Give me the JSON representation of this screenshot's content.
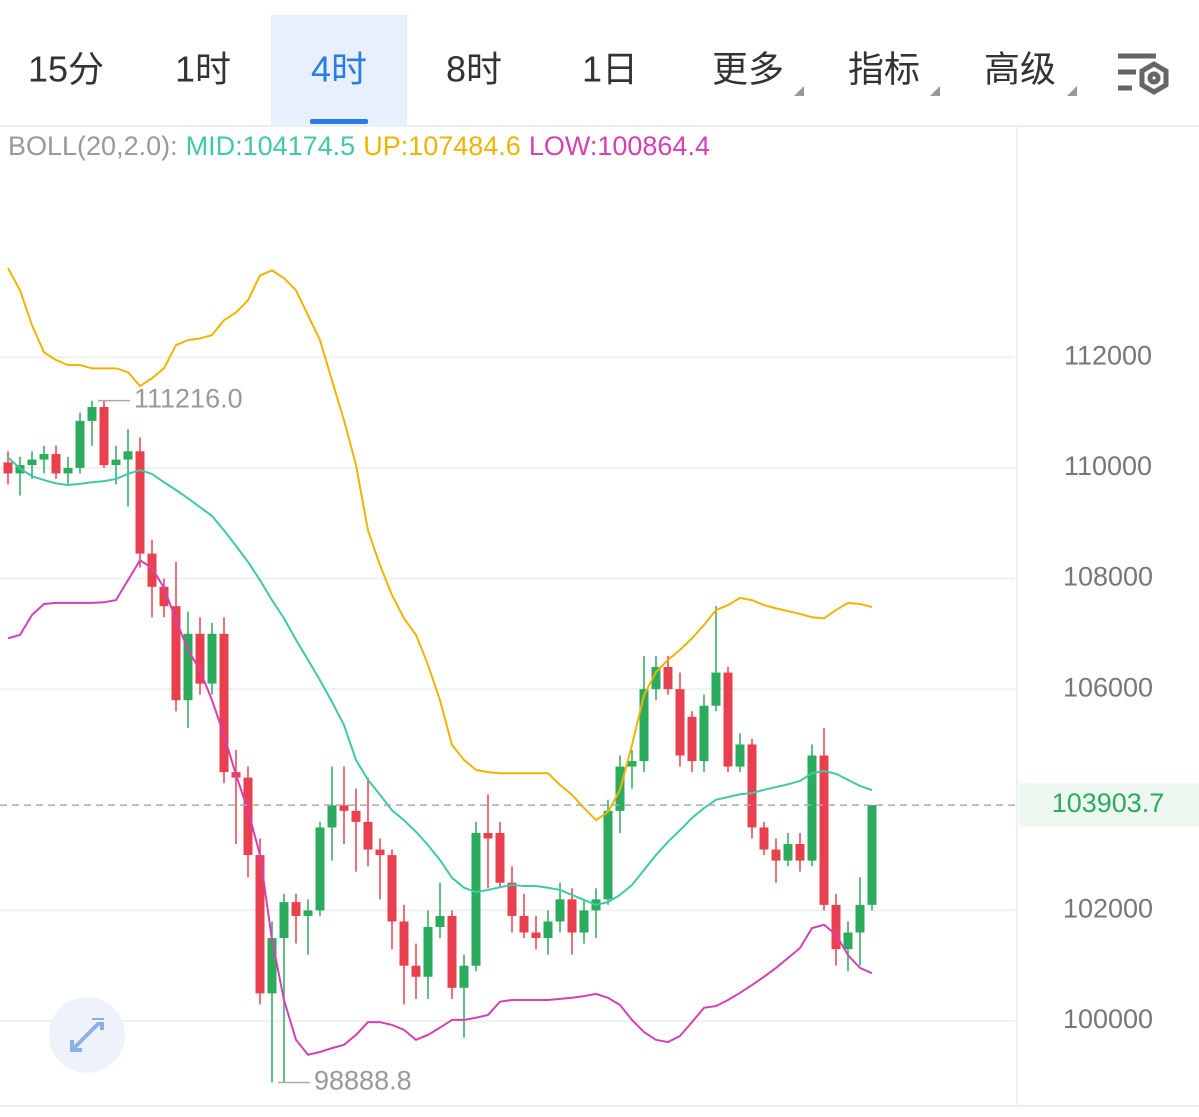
{
  "tabs": [
    "15分",
    "1时",
    "4时",
    "8时",
    "1日",
    "更多",
    "指标",
    "高级"
  ],
  "selected_tab": "4时",
  "chart_data": {
    "type": "candlestick",
    "indicator": "BOLL(20,2.0):",
    "open": [
      110100,
      109900,
      110050,
      110150,
      110250,
      109900,
      110000,
      110850,
      111100,
      110050,
      110150,
      110300,
      108450,
      107850,
      107500,
      105800,
      107000,
      106100,
      107000,
      104500,
      104400,
      103000,
      100500,
      101500,
      102150,
      101900,
      102000,
      103500,
      103900,
      103800,
      103600,
      103100,
      103000,
      101800,
      101000,
      100800,
      101700,
      101900,
      100600,
      101000,
      103400,
      103400,
      102500,
      101900,
      101600,
      101500,
      101800,
      102200,
      101600,
      102000,
      102200,
      103800,
      104600,
      104700,
      106000,
      106400,
      106000,
      105500,
      104700,
      105700,
      106300,
      104600,
      105000,
      103500,
      103100,
      102900,
      103200,
      102900,
      104800,
      102100,
      101300,
      101600,
      102100
    ],
    "high": [
      110300,
      110200,
      110300,
      110400,
      110400,
      110200,
      111000,
      111216,
      111200,
      110400,
      110700,
      110550,
      108700,
      108000,
      108300,
      107400,
      107300,
      107200,
      107300,
      104900,
      104600,
      103300,
      101800,
      102300,
      102300,
      102200,
      103600,
      104600,
      104600,
      104200,
      104400,
      103300,
      103100,
      102100,
      101400,
      102000,
      102500,
      102000,
      101200,
      103600,
      104100,
      103600,
      102800,
      102300,
      101900,
      102000,
      102500,
      102400,
      102200,
      102400,
      104000,
      104800,
      104900,
      106600,
      106600,
      106600,
      106300,
      105600,
      105900,
      107500,
      106400,
      105200,
      105100,
      103600,
      103300,
      103400,
      103400,
      105000,
      105300,
      102300,
      101800,
      102600,
      103903.7
    ],
    "low": [
      109700,
      109500,
      109800,
      109900,
      109800,
      109700,
      109900,
      110400,
      110000,
      109700,
      109300,
      108200,
      107300,
      107300,
      105600,
      105300,
      105900,
      105900,
      104300,
      103200,
      102600,
      100300,
      98888.8,
      98900,
      101400,
      101200,
      101900,
      102900,
      103200,
      102700,
      102800,
      102200,
      101300,
      100300,
      100400,
      100400,
      101500,
      100400,
      99700,
      100900,
      102400,
      102400,
      101600,
      101500,
      101300,
      101200,
      101600,
      101200,
      101400,
      101500,
      102100,
      103400,
      104200,
      104500,
      105800,
      105900,
      104600,
      104500,
      104500,
      105600,
      104500,
      104500,
      103300,
      103000,
      102500,
      102800,
      102700,
      102800,
      102000,
      101000,
      100900,
      101000,
      102000
    ],
    "close": [
      109900,
      110050,
      110150,
      110250,
      109900,
      110000,
      110850,
      111100,
      110050,
      110150,
      110300,
      108450,
      107850,
      107500,
      105800,
      107000,
      106100,
      107000,
      104500,
      104400,
      103000,
      100500,
      101500,
      102150,
      101900,
      102000,
      103500,
      103900,
      103800,
      103600,
      103100,
      103000,
      101800,
      101000,
      100800,
      101700,
      101900,
      100600,
      101000,
      103400,
      103300,
      102500,
      101900,
      101600,
      101500,
      101800,
      102200,
      101600,
      102000,
      102200,
      103800,
      104600,
      104700,
      106000,
      106400,
      106000,
      104800,
      104700,
      105700,
      106300,
      104600,
      105000,
      103500,
      103100,
      102900,
      103200,
      102900,
      104800,
      102100,
      101300,
      101600,
      102100,
      103903.7
    ],
    "up_color": "#2bab5e",
    "down_color": "#e8404e",
    "series": [
      {
        "name": "MID:104174.5",
        "color": "#3ec9a7",
        "values": [
          110190,
          109990,
          109850,
          109780,
          109720,
          109690,
          109710,
          109740,
          109760,
          109800,
          109890,
          109960,
          109890,
          109740,
          109600,
          109450,
          109290,
          109130,
          108870,
          108590,
          108300,
          107970,
          107610,
          107280,
          106890,
          106530,
          106160,
          105770,
          105350,
          104720,
          104360,
          104090,
          103810,
          103630,
          103420,
          103180,
          102910,
          102590,
          102410,
          102330,
          102370,
          102420,
          102460,
          102440,
          102440,
          102410,
          102370,
          102280,
          102190,
          102100,
          102150,
          102280,
          102460,
          102730,
          103000,
          103240,
          103450,
          103670,
          103850,
          104000,
          104050,
          104100,
          104120,
          104180,
          104230,
          104280,
          104340,
          104480,
          104520,
          104470,
          104360,
          104250,
          104174.5
        ]
      },
      {
        "name": "UP:107484.6",
        "color": "#f0b400",
        "values": [
          113610,
          113210,
          112580,
          112090,
          111950,
          111860,
          111860,
          111800,
          111800,
          111800,
          111730,
          111480,
          111620,
          111800,
          112220,
          112310,
          112340,
          112400,
          112670,
          112810,
          113030,
          113480,
          113570,
          113430,
          113210,
          112760,
          112310,
          111580,
          110860,
          110050,
          108870,
          108240,
          107700,
          107280,
          106980,
          106440,
          105800,
          104990,
          104720,
          104540,
          104500,
          104480,
          104480,
          104480,
          104480,
          104480,
          104270,
          104090,
          103850,
          103630,
          103780,
          104180,
          104990,
          105890,
          106310,
          106530,
          106710,
          106920,
          107160,
          107430,
          107520,
          107650,
          107610,
          107520,
          107460,
          107410,
          107360,
          107300,
          107280,
          107430,
          107560,
          107540,
          107484.6
        ]
      },
      {
        "name": "LOW:100864.4",
        "color": "#d541b4",
        "values": [
          106920,
          106980,
          107340,
          107540,
          107560,
          107560,
          107560,
          107560,
          107570,
          107610,
          107970,
          108330,
          108190,
          107830,
          107250,
          106710,
          106340,
          105800,
          105170,
          104450,
          103810,
          103000,
          101470,
          100380,
          99660,
          99390,
          99440,
          99510,
          99570,
          99750,
          99980,
          99980,
          99930,
          99840,
          99660,
          99750,
          99880,
          100020,
          100020,
          100060,
          100110,
          100350,
          100380,
          100380,
          100380,
          100380,
          100400,
          100420,
          100450,
          100490,
          100420,
          100290,
          100020,
          99800,
          99660,
          99620,
          99730,
          99980,
          100240,
          100270,
          100380,
          100510,
          100650,
          100800,
          100960,
          101140,
          101320,
          101680,
          101740,
          101560,
          101190,
          100960,
          100864.4
        ]
      }
    ],
    "annotations": [
      {
        "value": 111216,
        "label": "111216.0"
      },
      {
        "value": 98888.8,
        "label": "98888.8"
      }
    ],
    "last_price": {
      "value": 103903.7,
      "label": "103903.7"
    },
    "ylim": [
      98500,
      116000
    ],
    "yticks": [
      100000,
      102000,
      106000,
      108000,
      110000,
      112000
    ],
    "grid": true
  }
}
